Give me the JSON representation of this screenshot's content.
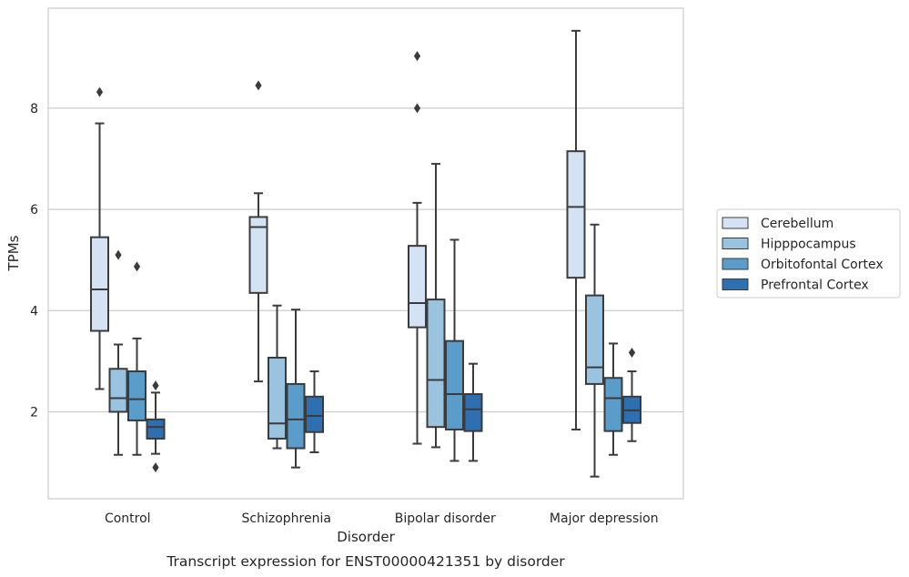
{
  "chart_data": {
    "type": "boxplot",
    "title": "Transcript expression for ENST00000421351 by disorder",
    "xlabel": "Disorder",
    "ylabel": "TPMs",
    "ylim": [
      0.2,
      9.9
    ],
    "yticks": [
      2,
      4,
      6,
      8
    ],
    "grid": "horizontal",
    "legend_position": "right",
    "categories": [
      "Control",
      "Schizophrenia",
      "Bipolar disorder",
      "Major depression"
    ],
    "series": [
      {
        "name": "Cerebellum",
        "color": "#d3e3f3",
        "boxes": [
          {
            "whislo": 2.45,
            "q1": 3.6,
            "med": 4.42,
            "q3": 5.45,
            "whishi": 7.7,
            "fliers": [
              8.32
            ]
          },
          {
            "whislo": 2.6,
            "q1": 4.35,
            "med": 5.65,
            "q3": 5.85,
            "whishi": 6.32,
            "fliers": [
              8.45
            ]
          },
          {
            "whislo": 1.37,
            "q1": 3.67,
            "med": 4.15,
            "q3": 5.28,
            "whishi": 6.13,
            "fliers": [
              8.0,
              9.03
            ]
          },
          {
            "whislo": 1.65,
            "q1": 4.65,
            "med": 6.05,
            "q3": 7.15,
            "whishi": 9.53,
            "fliers": []
          }
        ]
      },
      {
        "name": "Hipppocampus",
        "color": "#9ac3df",
        "boxes": [
          {
            "whislo": 1.15,
            "q1": 2.0,
            "med": 2.27,
            "q3": 2.85,
            "whishi": 3.33,
            "fliers": [
              5.1
            ]
          },
          {
            "whislo": 1.28,
            "q1": 1.47,
            "med": 1.77,
            "q3": 3.07,
            "whishi": 4.1,
            "fliers": []
          },
          {
            "whislo": 1.3,
            "q1": 1.7,
            "med": 2.63,
            "q3": 4.22,
            "whishi": 6.9,
            "fliers": []
          },
          {
            "whislo": 0.72,
            "q1": 2.55,
            "med": 2.88,
            "q3": 4.3,
            "whishi": 5.7,
            "fliers": []
          }
        ]
      },
      {
        "name": "Orbitofontal Cortex",
        "color": "#5a9dcb",
        "boxes": [
          {
            "whislo": 1.15,
            "q1": 1.83,
            "med": 2.25,
            "q3": 2.8,
            "whishi": 3.45,
            "fliers": [
              4.87
            ]
          },
          {
            "whislo": 0.9,
            "q1": 1.28,
            "med": 1.85,
            "q3": 2.55,
            "whishi": 4.02,
            "fliers": []
          },
          {
            "whislo": 1.03,
            "q1": 1.65,
            "med": 2.35,
            "q3": 3.4,
            "whishi": 5.4,
            "fliers": []
          },
          {
            "whislo": 1.15,
            "q1": 1.62,
            "med": 2.27,
            "q3": 2.67,
            "whishi": 3.35,
            "fliers": []
          }
        ]
      },
      {
        "name": "Prefrontal Cortex",
        "color": "#2d6fb0",
        "boxes": [
          {
            "whislo": 1.17,
            "q1": 1.47,
            "med": 1.7,
            "q3": 1.85,
            "whishi": 2.38,
            "fliers": [
              2.52,
              0.9
            ]
          },
          {
            "whislo": 1.2,
            "q1": 1.6,
            "med": 1.92,
            "q3": 2.3,
            "whishi": 2.8,
            "fliers": []
          },
          {
            "whislo": 1.03,
            "q1": 1.62,
            "med": 2.05,
            "q3": 2.35,
            "whishi": 2.95,
            "fliers": []
          },
          {
            "whislo": 1.42,
            "q1": 1.78,
            "med": 2.03,
            "q3": 2.3,
            "whishi": 2.8,
            "fliers": [
              3.17
            ]
          }
        ]
      }
    ]
  }
}
